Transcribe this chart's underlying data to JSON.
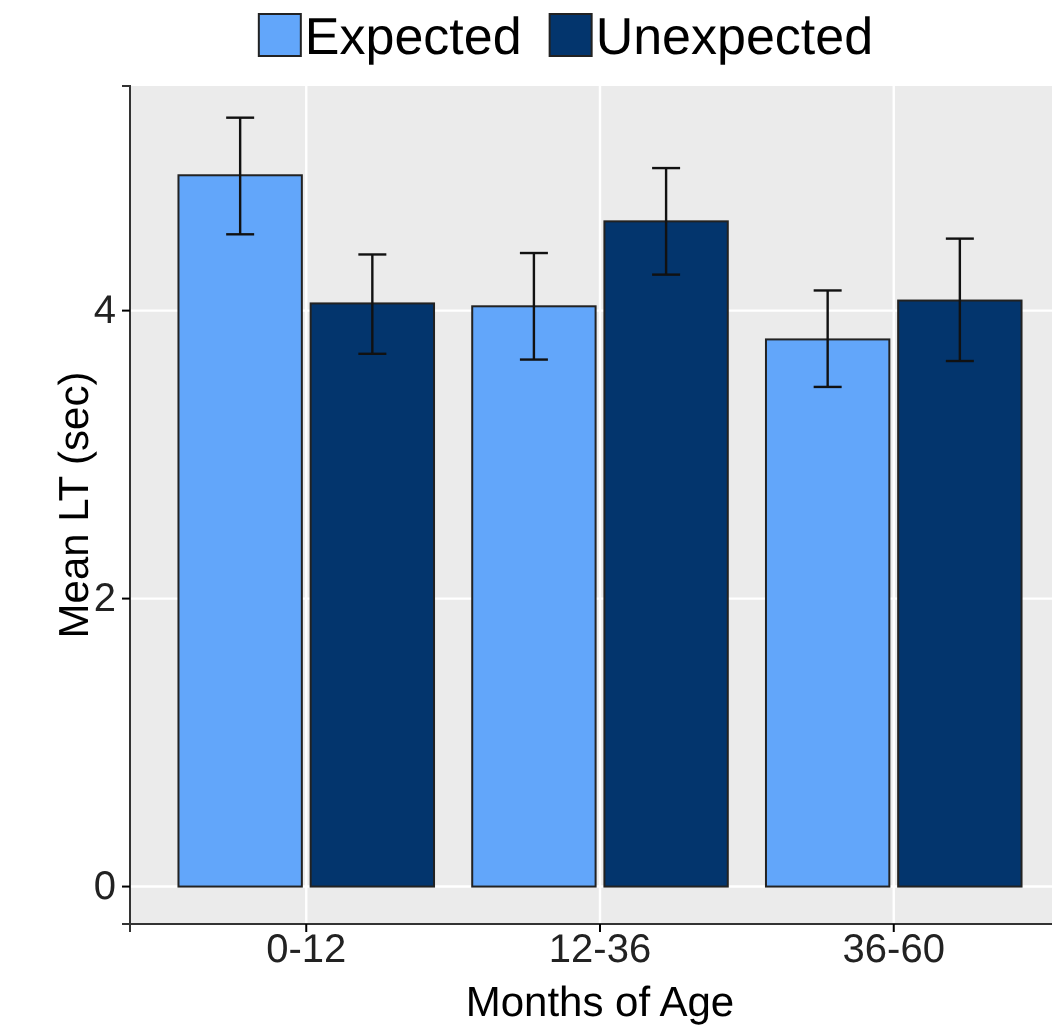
{
  "chart_data": {
    "type": "bar",
    "xlabel": "Months of Age",
    "ylabel": "Mean LT (sec)",
    "categories": [
      "0-12",
      "12-36",
      "36-60"
    ],
    "series": [
      {
        "name": "Expected",
        "color": "#62a6fa",
        "values": [
          4.94,
          4.03,
          3.8
        ],
        "errors": [
          [
            4.53,
            5.34
          ],
          [
            3.66,
            4.4
          ],
          [
            3.47,
            4.14
          ]
        ]
      },
      {
        "name": "Unexpected",
        "color": "#03356d",
        "values": [
          4.05,
          4.62,
          4.07
        ],
        "errors": [
          [
            3.7,
            4.39
          ],
          [
            4.25,
            4.99
          ],
          [
            3.65,
            4.5
          ]
        ]
      }
    ],
    "ylim": [
      -0.26,
      5.56
    ],
    "yticks": [
      0,
      2,
      4
    ],
    "grid": true,
    "legend": "top"
  }
}
